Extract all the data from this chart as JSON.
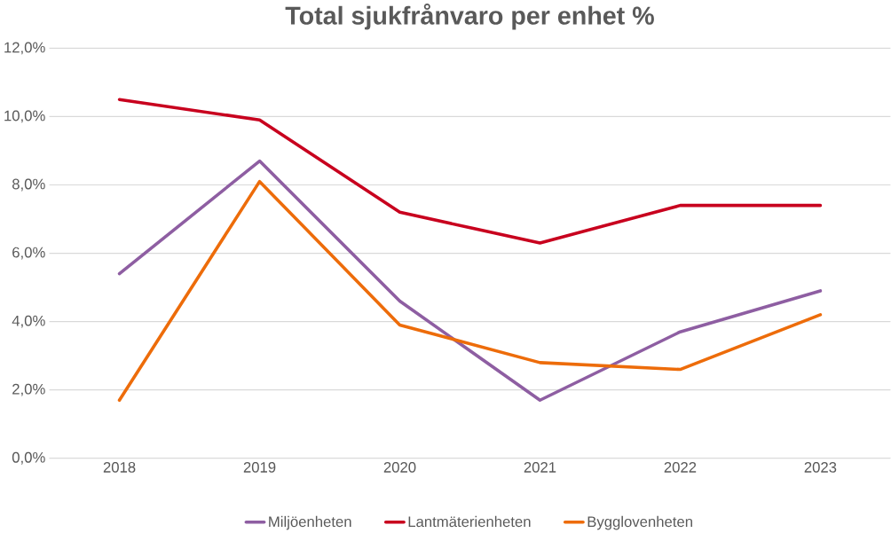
{
  "chart_data": {
    "type": "line",
    "title": "Total sjukfrånvaro per enhet %",
    "categories": [
      "2018",
      "2019",
      "2020",
      "2021",
      "2022",
      "2023"
    ],
    "series": [
      {
        "name": "Miljöenheten",
        "color": "#8e5ea2",
        "values": [
          5.4,
          8.7,
          4.6,
          1.7,
          3.7,
          4.9
        ]
      },
      {
        "name": "Lantmäterienheten",
        "color": "#c8001e",
        "values": [
          10.5,
          9.9,
          7.2,
          6.3,
          7.4,
          7.4
        ]
      },
      {
        "name": "Bygglovenheten",
        "color": "#ed6c0a",
        "values": [
          1.7,
          8.1,
          3.9,
          2.8,
          2.6,
          4.2
        ]
      }
    ],
    "ylim": [
      0,
      12
    ],
    "yticks": [
      {
        "value": 0,
        "label": "0,0%"
      },
      {
        "value": 2,
        "label": "2,0%"
      },
      {
        "value": 4,
        "label": "4,0%"
      },
      {
        "value": 6,
        "label": "6,0%"
      },
      {
        "value": 8,
        "label": "8,0%"
      },
      {
        "value": 10,
        "label": "10,0%"
      },
      {
        "value": 12,
        "label": "12,0%"
      }
    ],
    "grid": "y",
    "legend": "bottom",
    "marker": "none",
    "line_style": "solid"
  }
}
